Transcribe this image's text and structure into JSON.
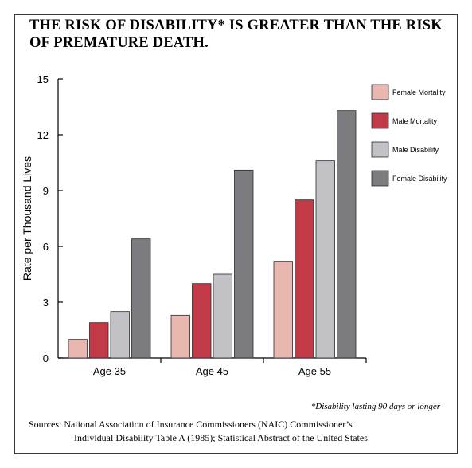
{
  "title": "THE RISK OF DISABILITY* IS GREATER THAN THE RISK OF PREMATURE DEATH.",
  "footnote": "*Disability lasting 90 days or longer",
  "sources": {
    "line1": "Sources: National Association of Insurance Commissioners (NAIC) Commissioner’s",
    "line2": "Individual Disability Table A (1985);  Statistical Abstract of the United States"
  },
  "chart_data": {
    "type": "bar",
    "categories": [
      "Age 35",
      "Age 45",
      "Age 55"
    ],
    "series": [
      {
        "name": "Female Mortality",
        "color": "#e8b8b0",
        "values": [
          1.0,
          2.3,
          5.2
        ]
      },
      {
        "name": "Male Mortality",
        "color": "#c23a48",
        "values": [
          1.9,
          4.0,
          8.5
        ]
      },
      {
        "name": "Male Disability",
        "color": "#c2c2c6",
        "values": [
          2.5,
          4.5,
          10.6
        ]
      },
      {
        "name": "Female Disability",
        "color": "#7b7b80",
        "values": [
          6.4,
          10.1,
          13.3
        ]
      }
    ],
    "ylabel": "Rate per Thousand Lives",
    "xlabel": "",
    "ylim": [
      0,
      15
    ],
    "yticks": [
      0,
      3,
      6,
      9,
      12,
      15
    ],
    "grid": false,
    "legend_position": "top-right"
  }
}
